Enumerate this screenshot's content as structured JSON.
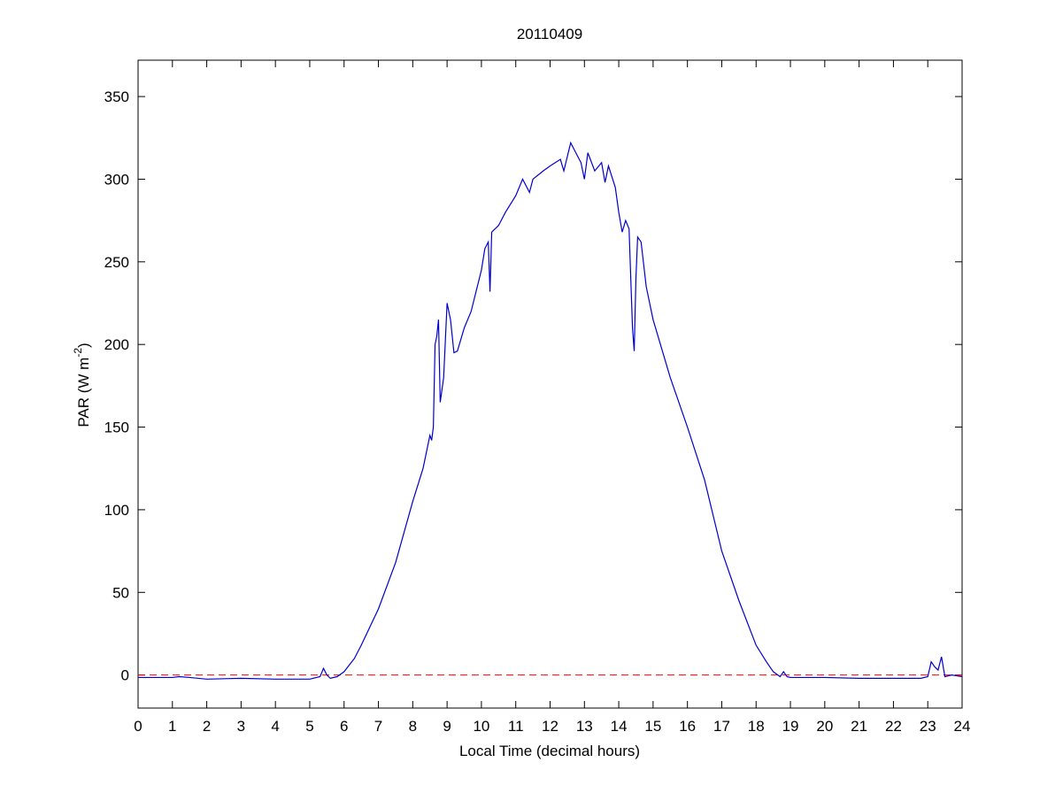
{
  "chart_data": {
    "type": "line",
    "title": "20110409",
    "xlabel": "Local Time (decimal hours)",
    "ylabel": {
      "text": "PAR (W m",
      "superscript": "-2",
      "suffix": ")"
    },
    "xlim": [
      0,
      24
    ],
    "xticks": [
      0,
      1,
      2,
      3,
      4,
      5,
      6,
      7,
      8,
      9,
      10,
      11,
      12,
      13,
      14,
      15,
      16,
      17,
      18,
      19,
      20,
      21,
      22,
      23,
      24
    ],
    "ylim": [
      -20,
      372
    ],
    "yticks": [
      0,
      50,
      100,
      150,
      200,
      250,
      300,
      350
    ],
    "grid": false,
    "reference_line": {
      "value": 0,
      "color": "#ff0000",
      "dashed": true
    },
    "series": [
      {
        "color": "#0000cc",
        "x": [
          0,
          1,
          1.2,
          1.5,
          2,
          3,
          4,
          5,
          5.3,
          5.4,
          5.5,
          5.6,
          5.8,
          6,
          6.3,
          6.5,
          7,
          7.5,
          8,
          8.3,
          8.5,
          8.55,
          8.6,
          8.65,
          8.7,
          8.75,
          8.8,
          8.9,
          9,
          9.1,
          9.2,
          9.3,
          9.5,
          9.7,
          10,
          10.1,
          10.2,
          10.25,
          10.3,
          10.5,
          10.7,
          11,
          11.2,
          11.4,
          11.5,
          11.8,
          12,
          12.3,
          12.4,
          12.6,
          12.7,
          12.9,
          13,
          13.1,
          13.3,
          13.5,
          13.6,
          13.7,
          13.9,
          14,
          14.1,
          14.2,
          14.3,
          14.4,
          14.45,
          14.5,
          14.55,
          14.65,
          14.8,
          15,
          15.5,
          16,
          16.5,
          17,
          17.5,
          18,
          18.3,
          18.5,
          18.7,
          18.8,
          18.9,
          19,
          20,
          21,
          22,
          22.8,
          23,
          23.1,
          23.2,
          23.3,
          23.4,
          23.5,
          23.7,
          24
        ],
        "values": [
          -1.5,
          -1.5,
          -1,
          -1.5,
          -2.5,
          -2,
          -2.5,
          -2.5,
          -1,
          4,
          0,
          -2,
          -1,
          2,
          10,
          18,
          40,
          68,
          105,
          125,
          145,
          142,
          150,
          200,
          205,
          215,
          165,
          180,
          225,
          215,
          195,
          196,
          210,
          220,
          245,
          258,
          262,
          232,
          268,
          272,
          280,
          290,
          300,
          292,
          300,
          305,
          308,
          312,
          305,
          322,
          318,
          310,
          300,
          316,
          305,
          310,
          298,
          308,
          295,
          280,
          268,
          275,
          270,
          210,
          196,
          240,
          265,
          262,
          235,
          215,
          180,
          150,
          118,
          75,
          45,
          18,
          8,
          2,
          -1,
          2,
          -1,
          -1.5,
          -1.5,
          -2,
          -2,
          -2,
          -1,
          8,
          5,
          3,
          11,
          -1,
          0,
          -1
        ]
      }
    ]
  }
}
